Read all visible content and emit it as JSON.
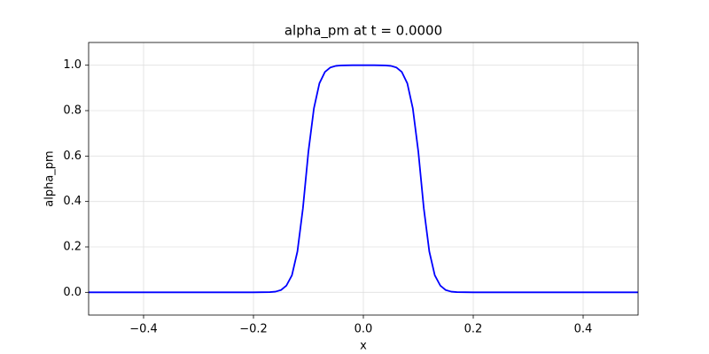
{
  "chart_data": {
    "type": "line",
    "title": "alpha_pm at t = 0.0000",
    "xlabel": "x",
    "ylabel": "alpha_pm",
    "x": [
      -0.5,
      -0.2,
      -0.17,
      -0.16,
      -0.15,
      -0.14,
      -0.13,
      -0.12,
      -0.11,
      -0.1,
      -0.09,
      -0.08,
      -0.07,
      -0.06,
      -0.05,
      -0.04,
      -0.02,
      0,
      0.02,
      0.04,
      0.05,
      0.06,
      0.07,
      0.08,
      0.09,
      0.1,
      0.11,
      0.12,
      0.13,
      0.14,
      0.15,
      0.16,
      0.17,
      0.2,
      0.5
    ],
    "series": [
      {
        "name": "alpha_pm",
        "color": "#0000ff",
        "values": [
          0,
          0,
          0.001,
          0.003,
          0.01,
          0.03,
          0.075,
          0.18,
          0.37,
          0.62,
          0.81,
          0.92,
          0.97,
          0.99,
          0.997,
          0.999,
          1,
          1,
          1,
          0.999,
          0.997,
          0.99,
          0.97,
          0.92,
          0.81,
          0.62,
          0.37,
          0.18,
          0.075,
          0.03,
          0.01,
          0.003,
          0.001,
          0,
          0
        ]
      }
    ],
    "xlim": [
      -0.5,
      0.5
    ],
    "ylim": [
      -0.1,
      1.1
    ],
    "xticks": [
      {
        "value": -0.4,
        "label": "−0.4"
      },
      {
        "value": -0.2,
        "label": "−0.2"
      },
      {
        "value": 0,
        "label": "0.0"
      },
      {
        "value": 0.2,
        "label": "0.2"
      },
      {
        "value": 0.4,
        "label": "0.4"
      }
    ],
    "yticks": [
      {
        "value": 0,
        "label": "0.0"
      },
      {
        "value": 0.2,
        "label": "0.2"
      },
      {
        "value": 0.4,
        "label": "0.4"
      },
      {
        "value": 0.6,
        "label": "0.6"
      },
      {
        "value": 0.8,
        "label": "0.8"
      },
      {
        "value": 1,
        "label": "1.0"
      }
    ],
    "grid": true
  }
}
